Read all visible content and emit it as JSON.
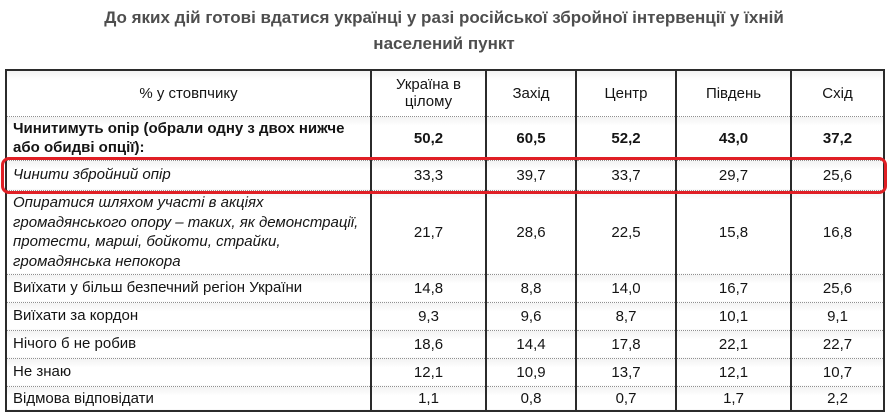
{
  "title": "До яких дій готові вдатися українці у разі російської збройної інтервенції у їхній населений пункт",
  "table": {
    "header": [
      "% у стовпчику",
      "Україна в цілому",
      "Захід",
      "Центр",
      "Південь",
      "Схід"
    ],
    "highlight_color": "#e01f25",
    "rows": [
      {
        "label": "Чинитимуть опір (обрали одну з двох нижче або обидві опції):",
        "values": [
          "50,2",
          "60,5",
          "52,2",
          "43,0",
          "37,2"
        ],
        "style": "bold",
        "highlighted": false
      },
      {
        "label": "Чинити збройний опір",
        "values": [
          "33,3",
          "39,7",
          "33,7",
          "29,7",
          "25,6"
        ],
        "style": "italic",
        "highlighted": true
      },
      {
        "label": "Опиратися шляхом участі в акціях громадянського опору – таких, як демонстрації, протести, марші, бойкоти, страйки, громадянська непокора",
        "values": [
          "21,7",
          "28,6",
          "22,5",
          "15,8",
          "16,8"
        ],
        "style": "italic",
        "highlighted": false
      },
      {
        "label": "Виїхати у більш безпечний регіон України",
        "values": [
          "14,8",
          "8,8",
          "14,0",
          "16,7",
          "25,6"
        ],
        "style": "normal",
        "highlighted": false
      },
      {
        "label": "Виїхати за кордон",
        "values": [
          "9,3",
          "9,6",
          "8,7",
          "10,1",
          "9,1"
        ],
        "style": "normal",
        "highlighted": false
      },
      {
        "label": "Нічого б не робив",
        "values": [
          "18,6",
          "14,4",
          "17,8",
          "22,1",
          "22,7"
        ],
        "style": "normal",
        "highlighted": false
      },
      {
        "label": "Не знаю",
        "values": [
          "12,1",
          "10,9",
          "13,7",
          "12,1",
          "10,7"
        ],
        "style": "normal",
        "highlighted": false
      },
      {
        "label": "Відмова відповідати",
        "values": [
          "1,1",
          "0,8",
          "0,7",
          "1,7",
          "2,2"
        ],
        "style": "normal",
        "highlighted": false
      }
    ]
  },
  "chart_data": {
    "type": "table",
    "title": "До яких дій готові вдатися українці у разі російської збройної інтервенції у їхній населений пункт",
    "row_header": "% у стовпчику",
    "columns": [
      "Україна в цілому",
      "Захід",
      "Центр",
      "Південь",
      "Схід"
    ],
    "categories": [
      "Чинитимуть опір (обрали одну з двох нижче або обидві опції):",
      "Чинити збройний опір",
      "Опиратися шляхом участі в акціях громадянського опору – таких, як демонстрації, протести, марші, бойкоти, страйки, громадянська непокора",
      "Виїхати у більш безпечний регіон України",
      "Виїхати за кордон",
      "Нічого б не робив",
      "Не знаю",
      "Відмова відповідати"
    ],
    "series": [
      {
        "name": "Україна в цілому",
        "values": [
          50.2,
          33.3,
          21.7,
          14.8,
          9.3,
          18.6,
          12.1,
          1.1
        ]
      },
      {
        "name": "Захід",
        "values": [
          60.5,
          39.7,
          28.6,
          8.8,
          9.6,
          14.4,
          10.9,
          0.8
        ]
      },
      {
        "name": "Центр",
        "values": [
          52.2,
          33.7,
          22.5,
          14.0,
          8.7,
          17.8,
          13.7,
          0.7
        ]
      },
      {
        "name": "Південь",
        "values": [
          43.0,
          29.7,
          15.8,
          16.7,
          10.1,
          22.1,
          12.1,
          1.7
        ]
      },
      {
        "name": "Схід",
        "values": [
          37.2,
          25.6,
          16.8,
          25.6,
          9.1,
          22.7,
          10.7,
          2.2
        ]
      }
    ],
    "annotations": [
      "Рядок «Чинити збройний опір» виділено червоною рамкою"
    ]
  }
}
